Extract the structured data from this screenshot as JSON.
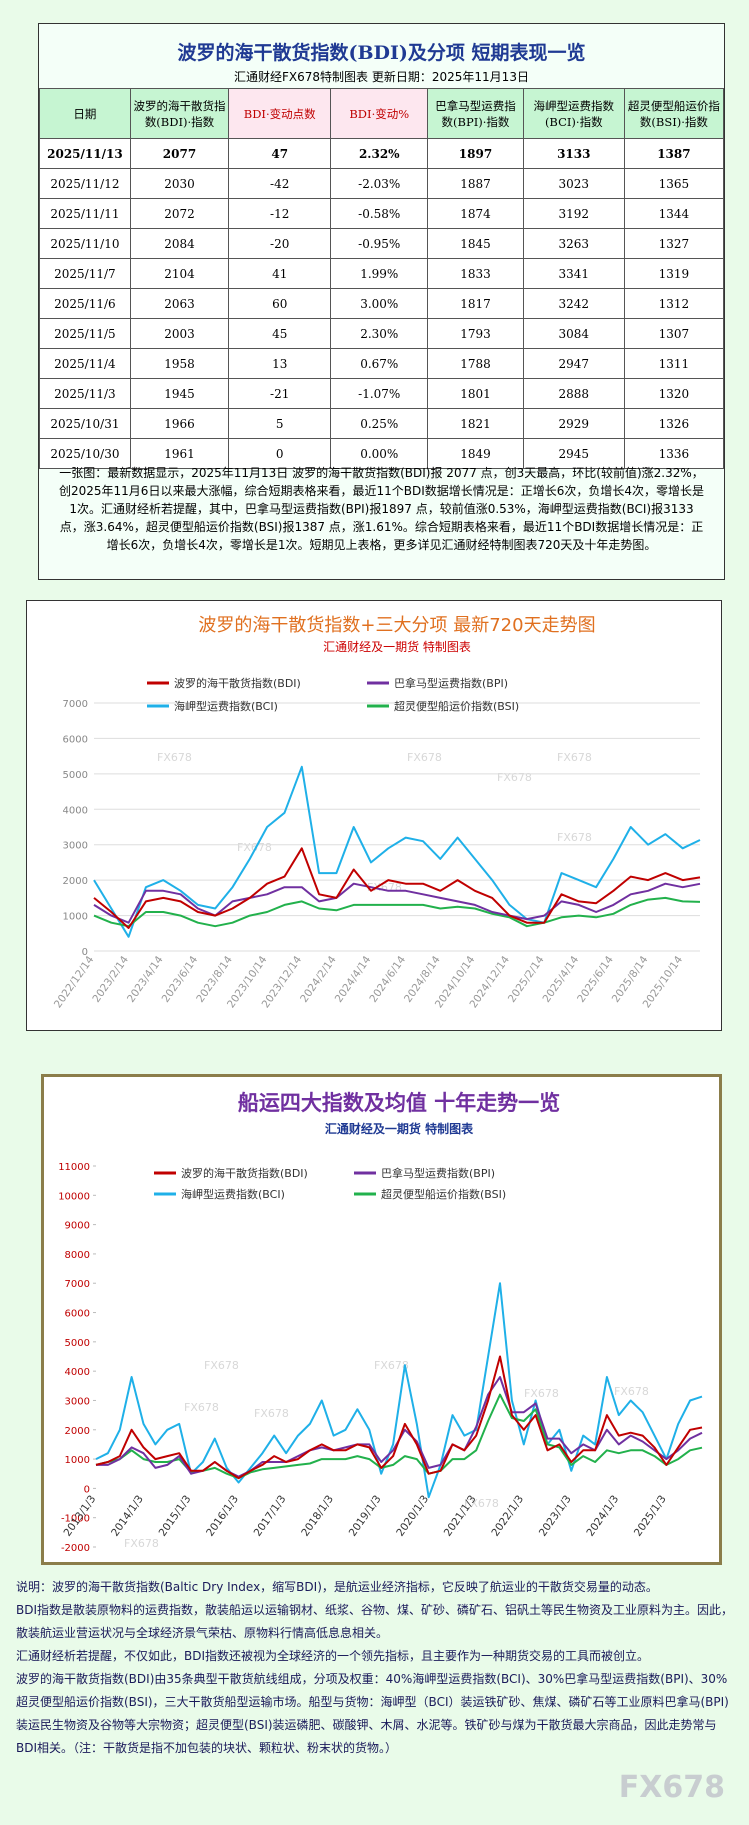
{
  "header": {
    "title": "波罗的海干散货指数(BDI)及分项 短期表现一览",
    "subtitle": "汇通财经FX678特制图表 更新日期：2025年11月13日"
  },
  "table": {
    "columns": [
      "日期",
      "波罗的海干散货指数(BDI)·指数",
      "BDI·变动点数",
      "BDI·变动%",
      "巴拿马型运费指数(BPI)·指数",
      "海岬型运费指数(BCI)·指数",
      "超灵便型船运价指数(BSI)·指数"
    ],
    "rows": [
      [
        "2025/11/13",
        "2077",
        "47",
        "2.32%",
        "1897",
        "3133",
        "1387"
      ],
      [
        "2025/11/12",
        "2030",
        "-42",
        "-2.03%",
        "1887",
        "3023",
        "1365"
      ],
      [
        "2025/11/11",
        "2072",
        "-12",
        "-0.58%",
        "1874",
        "3192",
        "1344"
      ],
      [
        "2025/11/10",
        "2084",
        "-20",
        "-0.95%",
        "1845",
        "3263",
        "1327"
      ],
      [
        "2025/11/7",
        "2104",
        "41",
        "1.99%",
        "1833",
        "3341",
        "1319"
      ],
      [
        "2025/11/6",
        "2063",
        "60",
        "3.00%",
        "1817",
        "3242",
        "1312"
      ],
      [
        "2025/11/5",
        "2003",
        "45",
        "2.30%",
        "1793",
        "3084",
        "1307"
      ],
      [
        "2025/11/4",
        "1958",
        "13",
        "0.67%",
        "1788",
        "2947",
        "1311"
      ],
      [
        "2025/11/3",
        "1945",
        "-21",
        "-1.07%",
        "1801",
        "2888",
        "1320"
      ],
      [
        "2025/10/31",
        "1966",
        "5",
        "0.25%",
        "1821",
        "2929",
        "1326"
      ],
      [
        "2025/10/30",
        "1961",
        "0",
        "0.00%",
        "1849",
        "2945",
        "1336"
      ]
    ]
  },
  "summary": "一张图：最新数据显示，2025年11月13日 波罗的海干散货指数(BDI)报 2077 点，创3天最高，环比(较前值)涨2.32%，创2025年11月6日以来最大涨幅，综合短期表格来看，最近11个BDI数据增长情况是：正增长6次，负增长4次，零增长是1次。汇通财经析若提醒，其中，巴拿马型运费指数(BPI)报1897 点，较前值涨0.53%，海岬型运费指数(BCI)报3133 点，涨3.64%，超灵便型船运价指数(BSI)报1387 点，涨1.61%。综合短期表格来看，最近11个BDI数据增长情况是：正增长6次，负增长4次，零增长是1次。短期见上表格，更多详见汇通财经特制图表720天及十年走势图。",
  "chart_data": [
    {
      "type": "line",
      "title": "波罗的海干散货指数+三大分项 最新720天走势图",
      "subtitle": "汇通财经及一期货 特制图表",
      "grid": true,
      "categories": [
        "2022/12/14",
        null,
        "2023/2/14",
        null,
        "2023/4/14",
        null,
        "2023/6/14",
        null,
        "2023/8/14",
        null,
        "2023/10/14",
        null,
        "2023/12/14",
        null,
        "2024/2/14",
        null,
        "2024/4/14",
        null,
        "2024/6/14",
        null,
        "2024/8/14",
        null,
        "2024/10/14",
        null,
        "2024/12/14",
        null,
        "2025/2/14",
        null,
        "2025/4/14",
        null,
        "2025/6/14",
        null,
        "2025/8/14",
        null,
        "2025/10/14",
        null
      ],
      "ylim": [
        0,
        7000
      ],
      "yticks": [
        0,
        1000,
        2000,
        3000,
        4000,
        5000,
        6000,
        7000
      ],
      "series": [
        {
          "name": "波罗的海干散货指数(BDI)",
          "color": "#c00000",
          "values": [
            1500,
            1100,
            650,
            1400,
            1500,
            1400,
            1100,
            1000,
            1200,
            1500,
            1900,
            2100,
            2900,
            1600,
            1500,
            2300,
            1700,
            2000,
            1900,
            1900,
            1700,
            2000,
            1700,
            1500,
            1000,
            800,
            800,
            1600,
            1400,
            1350,
            1700,
            2100,
            2000,
            2200,
            2000,
            2077
          ]
        },
        {
          "name": "巴拿马型运费指数(BPI)",
          "color": "#7030a0",
          "values": [
            1300,
            1000,
            800,
            1700,
            1700,
            1600,
            1200,
            1000,
            1400,
            1500,
            1600,
            1800,
            1800,
            1400,
            1500,
            1900,
            1800,
            1700,
            1700,
            1600,
            1500,
            1400,
            1300,
            1100,
            1000,
            900,
            1000,
            1400,
            1300,
            1100,
            1300,
            1600,
            1700,
            1900,
            1800,
            1897
          ]
        },
        {
          "name": "海岬型运费指数(BCI)",
          "color": "#1fb0e8",
          "values": [
            2000,
            1200,
            400,
            1800,
            2000,
            1700,
            1300,
            1200,
            1800,
            2600,
            3500,
            3900,
            5200,
            2200,
            2200,
            3500,
            2500,
            2900,
            3200,
            3100,
            2600,
            3200,
            2600,
            2000,
            1300,
            900,
            800,
            2200,
            2000,
            1800,
            2600,
            3500,
            3000,
            3300,
            2900,
            3133
          ]
        },
        {
          "name": "超灵便型船运价指数(BSI)",
          "color": "#22b14c",
          "values": [
            1000,
            800,
            700,
            1100,
            1100,
            1000,
            800,
            700,
            800,
            1000,
            1100,
            1300,
            1400,
            1200,
            1150,
            1300,
            1300,
            1300,
            1300,
            1300,
            1200,
            1250,
            1200,
            1050,
            950,
            700,
            800,
            950,
            1000,
            950,
            1050,
            1300,
            1450,
            1500,
            1400,
            1387
          ]
        }
      ]
    },
    {
      "type": "line",
      "title": "船运四大指数及均值 十年走势一览",
      "subtitle": "汇通财经及一期货 特制图表",
      "grid": false,
      "categories": [
        "2013/1/3",
        null,
        null,
        null,
        "2014/1/3",
        null,
        null,
        null,
        "2015/1/3",
        null,
        null,
        null,
        "2016/1/3",
        null,
        null,
        null,
        "2017/1/3",
        null,
        null,
        null,
        "2018/1/3",
        null,
        null,
        null,
        "2019/1/3",
        null,
        null,
        null,
        "2020/1/3",
        null,
        null,
        null,
        "2021/1/3",
        null,
        null,
        null,
        "2022/1/3",
        null,
        null,
        null,
        "2023/1/3",
        null,
        null,
        null,
        "2024/1/3",
        null,
        null,
        null,
        "2025/1/3",
        null,
        null,
        null
      ],
      "ylim": [
        -2000,
        11000
      ],
      "yticks": [
        -2000,
        -1000,
        0,
        1000,
        2000,
        3000,
        4000,
        5000,
        6000,
        7000,
        8000,
        9000,
        10000,
        11000
      ],
      "series": [
        {
          "name": "波罗的海干散货指数(BDI)",
          "color": "#c00000",
          "values": [
            800,
            900,
            1100,
            2000,
            1400,
            1000,
            1100,
            1200,
            600,
            600,
            900,
            600,
            350,
            600,
            800,
            1100,
            900,
            1000,
            1300,
            1500,
            1300,
            1300,
            1500,
            1400,
            700,
            1100,
            2200,
            1500,
            500,
            600,
            1500,
            1300,
            1800,
            3000,
            4500,
            2500,
            2000,
            2500,
            1300,
            1500,
            900,
            1300,
            1300,
            2500,
            1800,
            1900,
            1800,
            1400,
            800,
            1400,
            2000,
            2077
          ]
        },
        {
          "name": "巴拿马型运费指数(BPI)",
          "color": "#7030a0",
          "values": [
            800,
            800,
            1000,
            1400,
            1200,
            700,
            800,
            1100,
            500,
            600,
            900,
            600,
            400,
            600,
            900,
            900,
            900,
            1100,
            1300,
            1400,
            1300,
            1400,
            1500,
            1500,
            900,
            1300,
            2000,
            1600,
            700,
            800,
            1500,
            1300,
            2100,
            3200,
            3800,
            2600,
            2600,
            2900,
            1700,
            1700,
            1200,
            1500,
            1300,
            2000,
            1500,
            1800,
            1600,
            1300,
            1000,
            1300,
            1700,
            1897
          ]
        },
        {
          "name": "海岬型运费指数(BCI)",
          "color": "#1fb0e8",
          "values": [
            1000,
            1200,
            2000,
            3800,
            2200,
            1500,
            2000,
            2200,
            500,
            900,
            1700,
            700,
            200,
            700,
            1200,
            1800,
            1200,
            1800,
            2200,
            3000,
            1800,
            2000,
            2700,
            2000,
            500,
            1500,
            4200,
            2200,
            -300,
            800,
            2500,
            1800,
            2000,
            4500,
            7000,
            3000,
            1500,
            3000,
            1500,
            2000,
            600,
            1800,
            1500,
            3800,
            2500,
            3000,
            2600,
            1800,
            1000,
            2200,
            3000,
            3133
          ]
        },
        {
          "name": "超灵便型船运价指数(BSI)",
          "color": "#22b14c",
          "values": [
            800,
            900,
            1000,
            1300,
            1000,
            900,
            900,
            1000,
            550,
            600,
            700,
            500,
            350,
            550,
            650,
            700,
            750,
            800,
            850,
            1000,
            1000,
            1000,
            1100,
            1000,
            700,
            800,
            1100,
            1000,
            500,
            600,
            1000,
            1000,
            1300,
            2300,
            3200,
            2400,
            2300,
            2700,
            1500,
            1400,
            800,
            1100,
            900,
            1300,
            1200,
            1300,
            1300,
            1100,
            800,
            1000,
            1300,
            1387
          ]
        }
      ]
    }
  ],
  "notes": [
    "说明：波罗的海干散货指数(Baltic Dry Index，缩写BDI)，是航运业经济指标，它反映了航运业的干散货交易量的动态。",
    "BDI指数是散装原物料的运费指数，散装船运以运输钢材、纸浆、谷物、煤、矿砂、磷矿石、铝矾土等民生物资及工业原料为主。因此，散装航运业营运状况与全球经济景气荣枯、原物料行情高低息息相关。",
    "汇通财经析若提醒，不仅如此，BDI指数还被视为全球经济的一个领先指标，且主要作为一种期货交易的工具而被创立。",
    "波罗的海干散货指数(BDI)由35条典型干散货航线组成，分项及权重：40%海岬型运费指数(BCI)、30%巴拿马型运费指数(BPI)、30%超灵便型船运价指数(BSI)，三大干散货船型运输市场。船型与货物：海岬型（BCI）装运铁矿砂、焦煤、磷矿石等工业原料巴拿马(BPI)装运民生物资及谷物等大宗物资；超灵便型(BSI)装运磷肥、碳酸钾、木屑、水泥等。铁矿砂与煤为干散货最大宗商品，因此走势常与BDI相关。（注：干散货是指不加包装的块状、颗粒状、粉末状的货物。）"
  ],
  "watermark": "FX678"
}
